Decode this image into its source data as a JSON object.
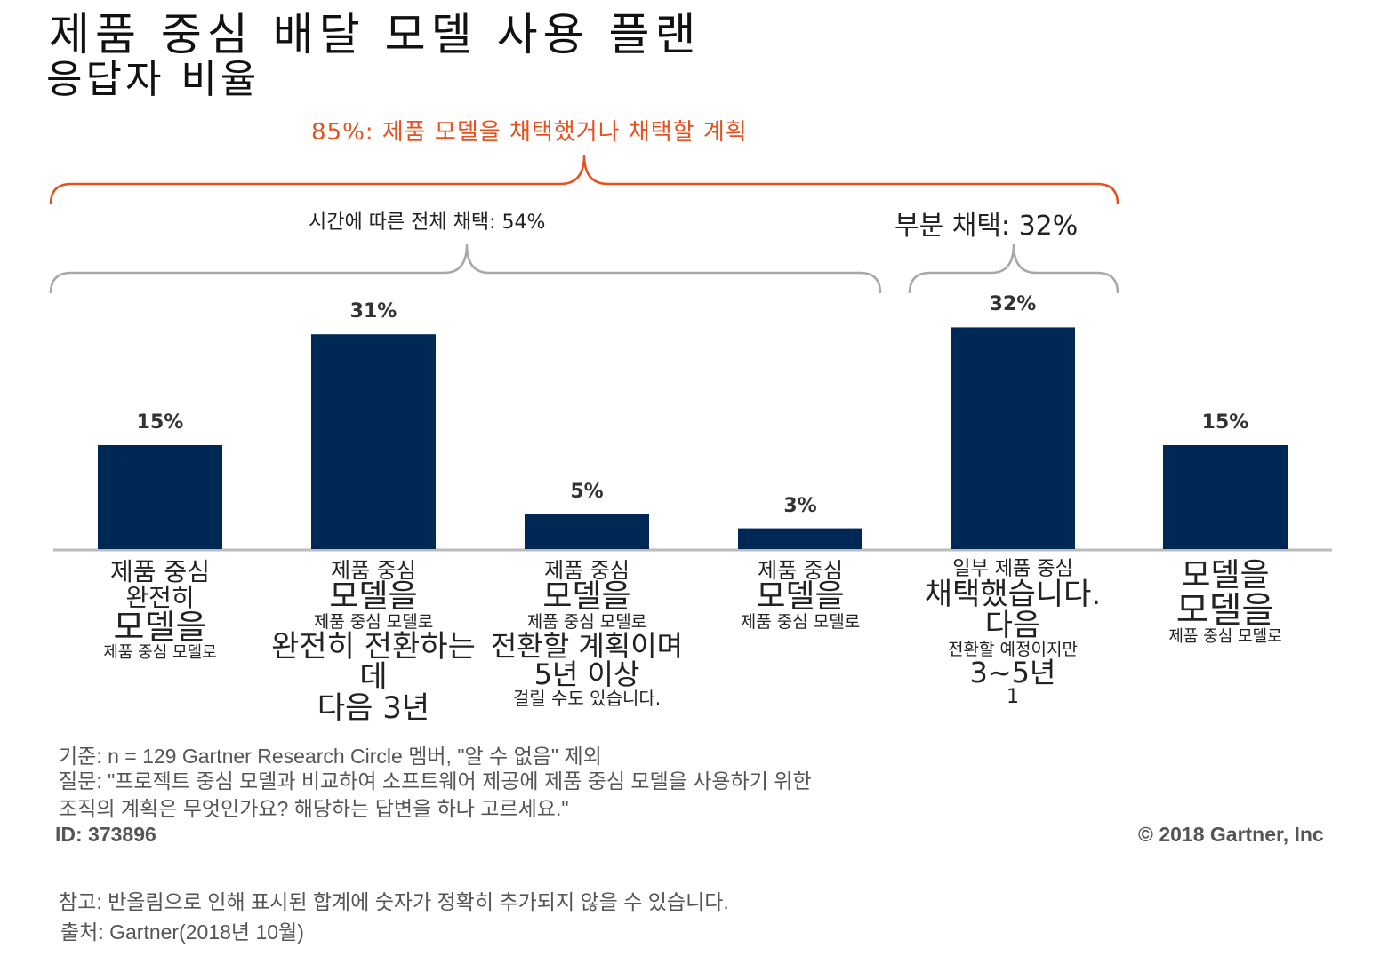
{
  "title": "제품 중심 배달 모델 사용 플랜",
  "subtitle": "응답자 비율",
  "chart_data": {
    "type": "bar",
    "title": "제품 중심 배달 모델 사용 플랜",
    "subtitle": "응답자 비율",
    "categories": [
      "제품 중심 모델로 완전히 전환",
      "다음 3년 동안 제품 중심 모델로 완전히 전환",
      "제품 중심 모델로 전환할 계획이며 5년 이상 걸릴 수도 있습니다.",
      "제품 중심 모델로",
      "일부 제품 중심 모델을 채택했습니다. 다음 3~5년 전환할 예정이지만",
      "제품 중심 모델로"
    ],
    "values": [
      15,
      31,
      5,
      3,
      32,
      15
    ],
    "value_labels": [
      "15%",
      "31%",
      "5%",
      "3%",
      "32%",
      "15%"
    ],
    "ylim": [
      0,
      35
    ],
    "color": "#002855",
    "grid": false,
    "annotations": {
      "total": "85%: 제품 모델을 채택했거나 채택할 계획",
      "group_full": "시간에 따른 전체 채택: 54%",
      "group_partial": "부분 채택: 32%"
    },
    "annotation_colors": {
      "total": "#e8501e",
      "groups": "#a0a0a0"
    }
  },
  "category_label_fragments": [
    [
      "제품 중심",
      "완전히",
      "모델을",
      "제품 중심 모델로"
    ],
    [
      "제품 중심",
      "모델을",
      "제품 중심 모델로",
      "완전히 전환하는 데",
      "다음 3년"
    ],
    [
      "제품 중심",
      "모델을",
      "제품 중심 모델로",
      "전환할 계획이며 5년 이상",
      "걸릴 수도 있습니다."
    ],
    [
      "제품 중심",
      "모델을",
      "제품 중심 모델로"
    ],
    [
      "일부 제품 중심",
      "채택했습니다. 다음",
      "전환할 예정이지만",
      "3~5년",
      "1"
    ],
    [
      "모델을",
      "모델을",
      "제품 중심 모델로"
    ]
  ],
  "footer": {
    "base": "기준: n =   129 Gartner Research Circle 멤버, \"알 수 없음\" 제외",
    "question1": "질문: \"프로젝트 중심 모델과 비교하여 소프트웨어 제공에 제품 중심 모델을 사용하기 위한",
    "question2": "조직의 계획은 무엇인가요? 해당하는 답변을 하나 고르세요.\"",
    "id": "ID: 373896",
    "copyright": "© 2018 Gartner, Inc",
    "note": "참고: 반올림으로 인해 표시된 합계에 숫자가 정확히 추가되지 않을 수 있습니다.",
    "source": "출처: Gartner(2018년 10월)"
  }
}
